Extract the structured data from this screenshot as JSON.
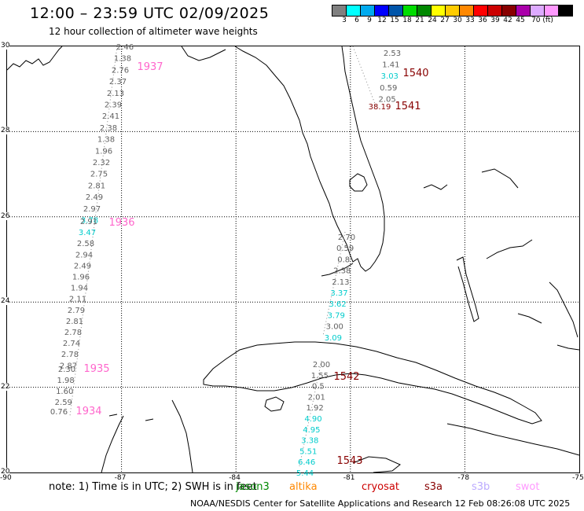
{
  "header": {
    "title": "12:00 – 23:59 UTC 02/09/2025",
    "subtitle": "12 hour collection of altimeter wave heights"
  },
  "colorbar": {
    "colors": [
      "#808080",
      "#00ffff",
      "#00aaee",
      "#0000ff",
      "#0055aa",
      "#00dd00",
      "#008800",
      "#ffff00",
      "#ffcc00",
      "#ff8800",
      "#ff0000",
      "#cc0000",
      "#880000",
      "#aa00aa",
      "#ddaaff",
      "#ff99ff",
      "#000000"
    ],
    "labels": [
      "3",
      "6",
      "9",
      "12",
      "15",
      "18",
      "21",
      "24",
      "27",
      "30",
      "33",
      "36",
      "39",
      "42",
      "45",
      "70 (ft)"
    ]
  },
  "map": {
    "lat_labels": [
      "30",
      "28",
      "26",
      "24",
      "22",
      "20"
    ],
    "lon_labels": [
      "-90",
      "-87",
      "-84",
      "-81",
      "-78",
      "-75"
    ]
  },
  "tracks": [
    {
      "id": "1937",
      "color": "#ff66cc",
      "values": [
        {
          "v": "2.46",
          "c": "#606060"
        },
        {
          "v": "1.38",
          "c": "#606060"
        },
        {
          "v": "2.76",
          "c": "#606060"
        },
        {
          "v": "2.37",
          "c": "#606060"
        },
        {
          "v": "2.13",
          "c": "#606060"
        },
        {
          "v": "2.39",
          "c": "#606060"
        },
        {
          "v": "2.41",
          "c": "#606060"
        },
        {
          "v": "2.38",
          "c": "#606060"
        },
        {
          "v": "1.38",
          "c": "#606060"
        },
        {
          "v": "1.96",
          "c": "#606060"
        },
        {
          "v": "2.32",
          "c": "#606060"
        },
        {
          "v": "2.75",
          "c": "#606060"
        },
        {
          "v": "2.81",
          "c": "#606060"
        },
        {
          "v": "2.49",
          "c": "#606060"
        },
        {
          "v": "2.97",
          "c": "#606060"
        },
        {
          "v": "3.78",
          "c": "#00cccc"
        }
      ]
    },
    {
      "id": "1936",
      "color": "#ff66cc",
      "values": [
        {
          "v": "2.91",
          "c": "#606060"
        },
        {
          "v": "3.47",
          "c": "#00cccc"
        },
        {
          "v": "2.58",
          "c": "#606060"
        },
        {
          "v": "2.94",
          "c": "#606060"
        },
        {
          "v": "2.49",
          "c": "#606060"
        },
        {
          "v": "1.96",
          "c": "#606060"
        },
        {
          "v": "1.94",
          "c": "#606060"
        },
        {
          "v": "2.11",
          "c": "#606060"
        },
        {
          "v": "2.79",
          "c": "#606060"
        },
        {
          "v": "2.81",
          "c": "#606060"
        },
        {
          "v": "2.78",
          "c": "#606060"
        },
        {
          "v": "2.74",
          "c": "#606060"
        },
        {
          "v": "2.78",
          "c": "#606060"
        },
        {
          "v": "2.87",
          "c": "#606060"
        }
      ]
    },
    {
      "id": "1935",
      "color": "#ff66cc",
      "values": [
        {
          "v": "2.30",
          "c": "#606060"
        },
        {
          "v": "1.98",
          "c": "#606060"
        },
        {
          "v": "1.60",
          "c": "#606060"
        },
        {
          "v": "2.59",
          "c": "#606060"
        }
      ]
    },
    {
      "id": "1934",
      "color": "#ff66cc",
      "values": [
        {
          "v": "0.76",
          "c": "#606060"
        }
      ]
    },
    {
      "id": "1540",
      "color": "#880000",
      "values": [
        {
          "v": "2.53",
          "c": "#606060"
        },
        {
          "v": "1.41",
          "c": "#606060"
        },
        {
          "v": "3.03",
          "c": "#00cccc"
        },
        {
          "v": "0.59",
          "c": "#606060"
        },
        {
          "v": "2.05",
          "c": "#606060"
        }
      ]
    },
    {
      "id": "1541",
      "color": "#880000",
      "values": [
        {
          "v": "38.19",
          "c": "#880000"
        }
      ]
    },
    {
      "id": "1541b",
      "values": [
        {
          "v": "2.70",
          "c": "#606060"
        },
        {
          "v": "0.59",
          "c": "#606060"
        },
        {
          "v": "0.8",
          "c": "#606060"
        },
        {
          "v": "2.38",
          "c": "#606060"
        },
        {
          "v": "2.13",
          "c": "#606060"
        },
        {
          "v": "3.37",
          "c": "#00cccc"
        },
        {
          "v": "3.62",
          "c": "#00cccc"
        },
        {
          "v": "3.79",
          "c": "#00cccc"
        },
        {
          "v": "3.00",
          "c": "#606060"
        },
        {
          "v": "3.09",
          "c": "#00cccc"
        }
      ]
    },
    {
      "id": "1542",
      "color": "#880000",
      "values": [
        {
          "v": "2.00",
          "c": "#606060"
        },
        {
          "v": "1.55",
          "c": "#606060"
        },
        {
          "v": "0.5",
          "c": "#606060"
        },
        {
          "v": "2.01",
          "c": "#606060"
        },
        {
          "v": "1.92",
          "c": "#606060"
        },
        {
          "v": "4.90",
          "c": "#00cccc"
        },
        {
          "v": "4.95",
          "c": "#00cccc"
        },
        {
          "v": "3.38",
          "c": "#00cccc"
        },
        {
          "v": "5.51",
          "c": "#00cccc"
        },
        {
          "v": "6.46",
          "c": "#00cccc"
        },
        {
          "v": "5.44",
          "c": "#00cccc"
        }
      ]
    },
    {
      "id": "1543",
      "color": "#880000",
      "values": []
    }
  ],
  "note": "note: 1) Time is in UTC; 2) SWH is in feet",
  "satellites": [
    {
      "name": "jason3",
      "color": "#008800"
    },
    {
      "name": "altika",
      "color": "#ff8800"
    },
    {
      "name": "cryosat",
      "color": "#cc0000"
    },
    {
      "name": "s3a",
      "color": "#880000"
    },
    {
      "name": "s3b",
      "color": "#bbaaff"
    },
    {
      "name": "swot",
      "color": "#ff99ff"
    }
  ],
  "footer": "NOAA/NESDIS Center for Satellite Applications and Research     12 Feb 08:26:08 UTC 2025"
}
